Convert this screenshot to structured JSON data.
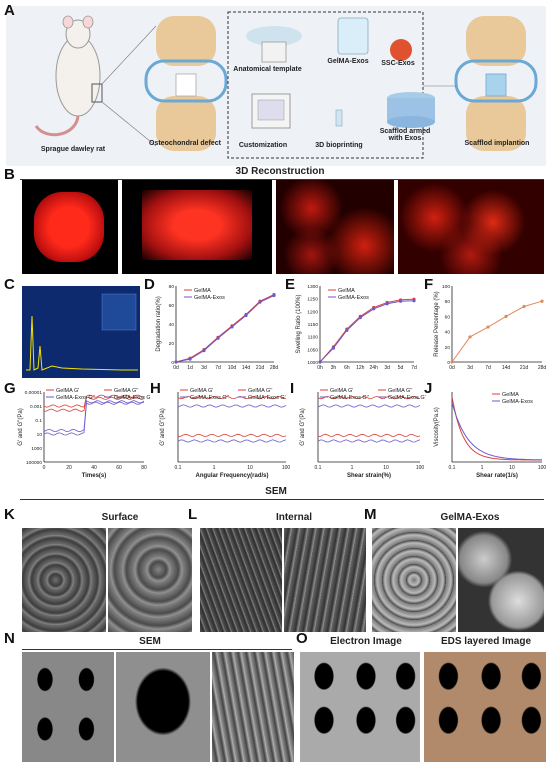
{
  "panel_labels": [
    "A",
    "B",
    "C",
    "D",
    "E",
    "F",
    "G",
    "H",
    "I",
    "J",
    "K",
    "L",
    "M",
    "N",
    "O"
  ],
  "schematic": {
    "rat_caption": "Sprague dawley rat",
    "defect_caption": "Osteochondral defect",
    "template_caption": "Anatomical template",
    "gelma_exos_caption": "GelMA-Exos",
    "ssc_exos_caption": "SSC-Exos",
    "customization_caption": "Customization",
    "bioprinting_caption": "3D bioprinting",
    "scaffold_caption": "Scafflod armed with Exos",
    "implant_caption": "Scafflod implantion"
  },
  "section_titles": {
    "recon": "3D Reconstruction",
    "sem_top": "SEM",
    "surface": "Surface",
    "internal": "Internal",
    "gelma_exos": "GelMA-Exos",
    "sem_n": "SEM",
    "electron": "Electron Image",
    "eds": "EDS layered Image"
  },
  "colors": {
    "gelma": "#d9413a",
    "gelma_exos": "#6a5acd",
    "release": "#e08a5a"
  },
  "chart_data": [
    {
      "panel": "D",
      "type": "line",
      "ylabel": "Degradation ratio(%)",
      "categories": [
        "0d",
        "1d",
        "3d",
        "7d",
        "10d",
        "14d",
        "21d",
        "28d"
      ],
      "ylim": [
        0,
        80
      ],
      "yticks": [
        "0",
        "20",
        "40",
        "60",
        "80"
      ],
      "series": [
        {
          "name": "GelMA",
          "values": [
            0,
            4,
            13,
            26,
            38,
            50,
            64,
            71
          ]
        },
        {
          "name": "GelMA-Exos",
          "values": [
            0,
            3,
            12,
            25,
            37,
            49,
            63,
            70
          ]
        }
      ]
    },
    {
      "panel": "E",
      "type": "line",
      "ylabel": "Swelling Ratio (100%)",
      "categories": [
        "0h",
        "3h",
        "6h",
        "12h",
        "24h",
        "3d",
        "5d",
        "7d"
      ],
      "ylim": [
        1000,
        1300
      ],
      "yticks": [
        "1000",
        "1050",
        "1100",
        "1150",
        "1200",
        "1250",
        "1300"
      ],
      "series": [
        {
          "name": "GelMA",
          "values": [
            1000,
            1060,
            1130,
            1180,
            1215,
            1235,
            1245,
            1248
          ]
        },
        {
          "name": "GelMA-Exos",
          "values": [
            1000,
            1055,
            1125,
            1175,
            1210,
            1230,
            1240,
            1242
          ]
        }
      ]
    },
    {
      "panel": "F",
      "type": "line",
      "ylabel": "Release Percentage (%)",
      "categories": [
        "0d",
        "3d",
        "7d",
        "14d",
        "21d",
        "28d"
      ],
      "ylim": [
        0,
        100
      ],
      "yticks": [
        "0",
        "20",
        "40",
        "60",
        "80",
        "100"
      ],
      "series": [
        {
          "name": "",
          "values": [
            0,
            33,
            46,
            60,
            73,
            80
          ]
        }
      ]
    },
    {
      "panel": "G",
      "type": "line",
      "ylabel": "G' and G''(Pa)",
      "xlabel": "Times(s)",
      "categories": [
        "0",
        "20",
        "40",
        "60",
        "80"
      ],
      "yticks": [
        "100000",
        "1000",
        "10",
        "0.1",
        "0.001",
        "0.00001"
      ],
      "series": [
        {
          "name": "GelMA G'"
        },
        {
          "name": "GelMA G''"
        },
        {
          "name": "GelMA-Exos G''"
        },
        {
          "name": "GelMA-Exos G'"
        }
      ]
    },
    {
      "panel": "H",
      "type": "line",
      "ylabel": "G' and G''(Pa)",
      "xlabel": "Angular Frequency(rad/s)",
      "categories": [
        "0.1",
        "1",
        "10",
        "100"
      ],
      "series": [
        {
          "name": "GelMA G'"
        },
        {
          "name": "GelMA G''"
        },
        {
          "name": "GelMA-Exos G''"
        },
        {
          "name": "GelMA-Exos G'"
        }
      ]
    },
    {
      "panel": "I",
      "type": "line",
      "ylabel": "G' and G''(Pa)",
      "xlabel": "Shear strain(%)",
      "categories": [
        "0.1",
        "1",
        "10",
        "100"
      ],
      "series": [
        {
          "name": "GelMA G'"
        },
        {
          "name": "GelMA G''"
        },
        {
          "name": "GelMA-Exos G''"
        },
        {
          "name": "GelMA-Exos G'"
        }
      ]
    },
    {
      "panel": "J",
      "type": "line",
      "ylabel": "Viscosity(Pa.s)",
      "xlabel": "Shear rate(1/s)",
      "categories": [
        "0.1",
        "1",
        "10",
        "100"
      ],
      "series": [
        {
          "name": "GelMA"
        },
        {
          "name": "GelMA-Exos"
        }
      ]
    }
  ]
}
